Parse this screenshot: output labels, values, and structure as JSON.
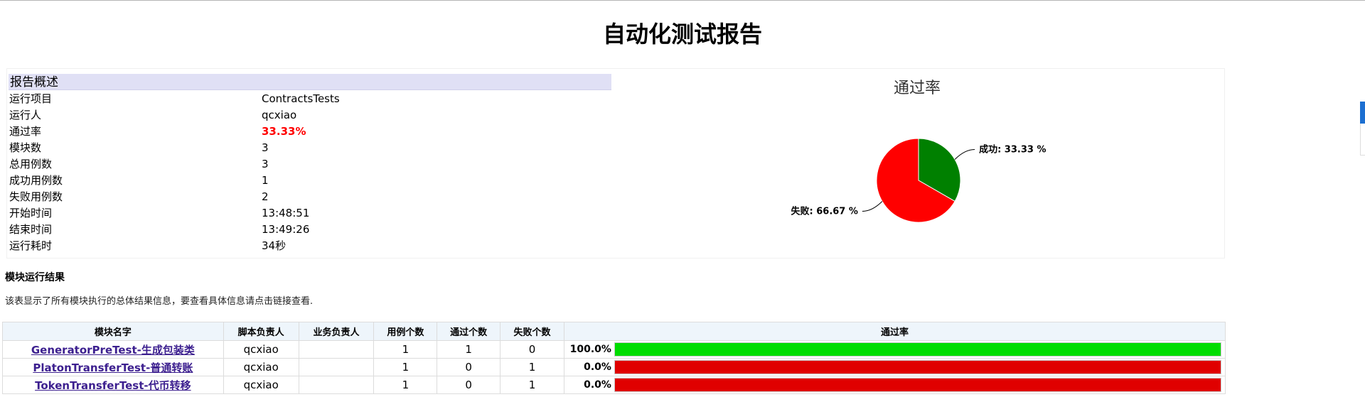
{
  "title": "自动化测试报告",
  "overview": {
    "header": "报告概述",
    "rows": [
      {
        "label": "运行项目",
        "value": "ContractsTests"
      },
      {
        "label": "运行人",
        "value": "qcxiao"
      },
      {
        "label": "通过率",
        "value": "33.33%"
      },
      {
        "label": "模块数",
        "value": "3"
      },
      {
        "label": "总用例数",
        "value": "3"
      },
      {
        "label": "成功用例数",
        "value": "1"
      },
      {
        "label": "失败用例数",
        "value": "2"
      },
      {
        "label": "开始时间",
        "value": "13:48:51"
      },
      {
        "label": "结束时间",
        "value": "13:49:26"
      },
      {
        "label": "运行耗时",
        "value": "34秒"
      }
    ]
  },
  "chart_data": {
    "type": "pie",
    "title": "通过率",
    "slices": [
      {
        "name": "成功",
        "value": 33.33,
        "label": "成功: 33.33 %",
        "color": "#008000"
      },
      {
        "name": "失败",
        "value": 66.67,
        "label": "失败: 66.67 %",
        "color": "#ff0000"
      }
    ]
  },
  "modules": {
    "title": "模块运行结果",
    "description": "该表显示了所有模块执行的总体结果信息，要查看具体信息请点击链接查看.",
    "columns": [
      "模块名字",
      "脚本负责人",
      "业务负责人",
      "用例个数",
      "通过个数",
      "失败个数",
      "通过率"
    ],
    "rows": [
      {
        "name": "GeneratorPreTest-生成包装类",
        "script_owner": "qcxiao",
        "biz_owner": "",
        "cases": "1",
        "passed": "1",
        "failed": "0",
        "rate": "100.0%",
        "rate_fraction": 1.0
      },
      {
        "name": "PlatonTransferTest-普通转账",
        "script_owner": "qcxiao",
        "biz_owner": "",
        "cases": "1",
        "passed": "0",
        "failed": "1",
        "rate": "0.0%",
        "rate_fraction": 0.0
      },
      {
        "name": "TokenTransferTest-代币转移",
        "script_owner": "qcxiao",
        "biz_owner": "",
        "cases": "1",
        "passed": "0",
        "failed": "1",
        "rate": "0.0%",
        "rate_fraction": 0.0
      }
    ]
  },
  "colors": {
    "pass": "#00dd00",
    "fail": "#e00000"
  }
}
